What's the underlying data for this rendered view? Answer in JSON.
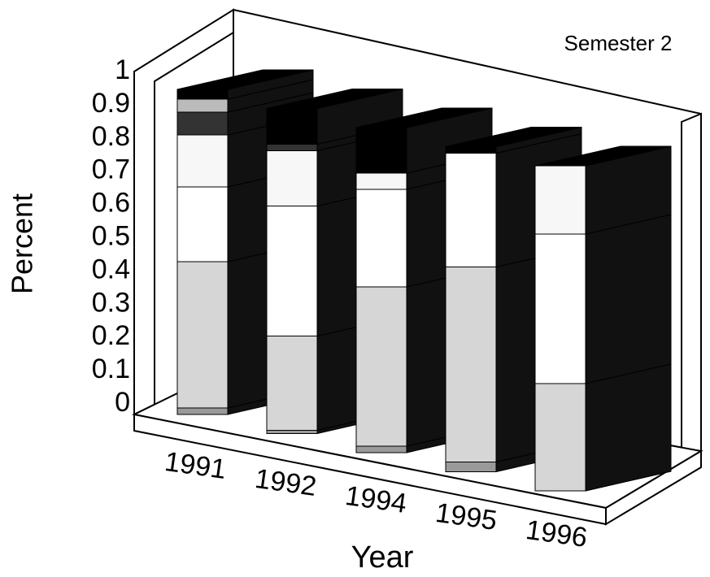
{
  "chart_data": {
    "type": "bar3d_stacked",
    "title": "Semester 2",
    "x_label": "Year",
    "y_label": "Percent",
    "categories": [
      "1991",
      "1992",
      "1994",
      "1995",
      "1996"
    ],
    "series": [
      {
        "color": "#9a9a9a",
        "values": [
          0.02,
          0.01,
          0.02,
          0.03,
          0.0
        ]
      },
      {
        "color": "#d6d6d6",
        "values": [
          0.45,
          0.29,
          0.49,
          0.6,
          0.33
        ]
      },
      {
        "color": "#ffffff",
        "values": [
          0.23,
          0.4,
          0.3,
          0.35,
          0.46
        ]
      },
      {
        "color": "#f7f7f7",
        "values": [
          0.16,
          0.17,
          0.05,
          0.0,
          0.21
        ]
      },
      {
        "color": "#333333",
        "values": [
          0.07,
          0.02,
          0.0,
          0.0,
          0.0
        ]
      },
      {
        "color": "#bbbbbb",
        "values": [
          0.04,
          0.0,
          0.0,
          0.0,
          0.0
        ]
      },
      {
        "color": "#000000",
        "values": [
          0.03,
          0.11,
          0.14,
          0.02,
          0.0
        ]
      }
    ],
    "ylim": [
      0,
      1
    ],
    "yticks": [
      0,
      0.1,
      0.2,
      0.3,
      0.4,
      0.5,
      0.6,
      0.7,
      0.8,
      0.9,
      1
    ]
  }
}
